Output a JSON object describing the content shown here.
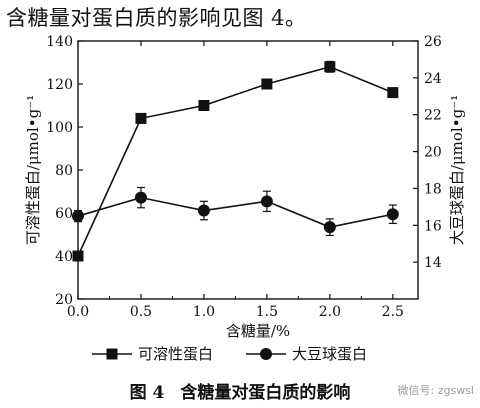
{
  "intro_text": "含糖量对蛋白质的影响见图 4。",
  "caption": {
    "number": "图 4",
    "title": "含糖量对蛋白质的影响"
  },
  "watermark": "微信号: zgswsl",
  "chart_data": {
    "type": "line",
    "title": "",
    "xlabel": "含糖量/%",
    "ylabel_left": "可溶性蛋白/μmol•g⁻¹",
    "ylabel_right": "大豆球蛋白/μmol•g⁻¹",
    "x": [
      0.0,
      0.5,
      1.0,
      1.5,
      2.0,
      2.5
    ],
    "xlim": [
      0.0,
      2.7
    ],
    "ylim_left": [
      20,
      140
    ],
    "ylim_right": [
      12,
      26
    ],
    "x_ticks": [
      "0.0",
      "0.5",
      "1.0",
      "1.5",
      "2.0",
      "2.5"
    ],
    "y_left_ticks": [
      "20",
      "40",
      "60",
      "80",
      "100",
      "120",
      "140"
    ],
    "y_right_ticks": [
      "14",
      "16",
      "18",
      "20",
      "22",
      "24",
      "26"
    ],
    "grid": false,
    "legend_position": "bottom",
    "series": [
      {
        "name": "可溶性蛋白",
        "axis": "left",
        "marker": "square",
        "values": [
          40,
          104,
          110,
          120,
          128,
          116
        ],
        "errors": [
          1.5,
          2,
          2,
          2,
          2.5,
          2
        ]
      },
      {
        "name": "大豆球蛋白",
        "axis": "right",
        "marker": "circle",
        "values": [
          16.5,
          17.5,
          16.8,
          17.3,
          15.9,
          16.6
        ],
        "errors": [
          0.3,
          0.55,
          0.5,
          0.55,
          0.45,
          0.5
        ]
      }
    ]
  }
}
